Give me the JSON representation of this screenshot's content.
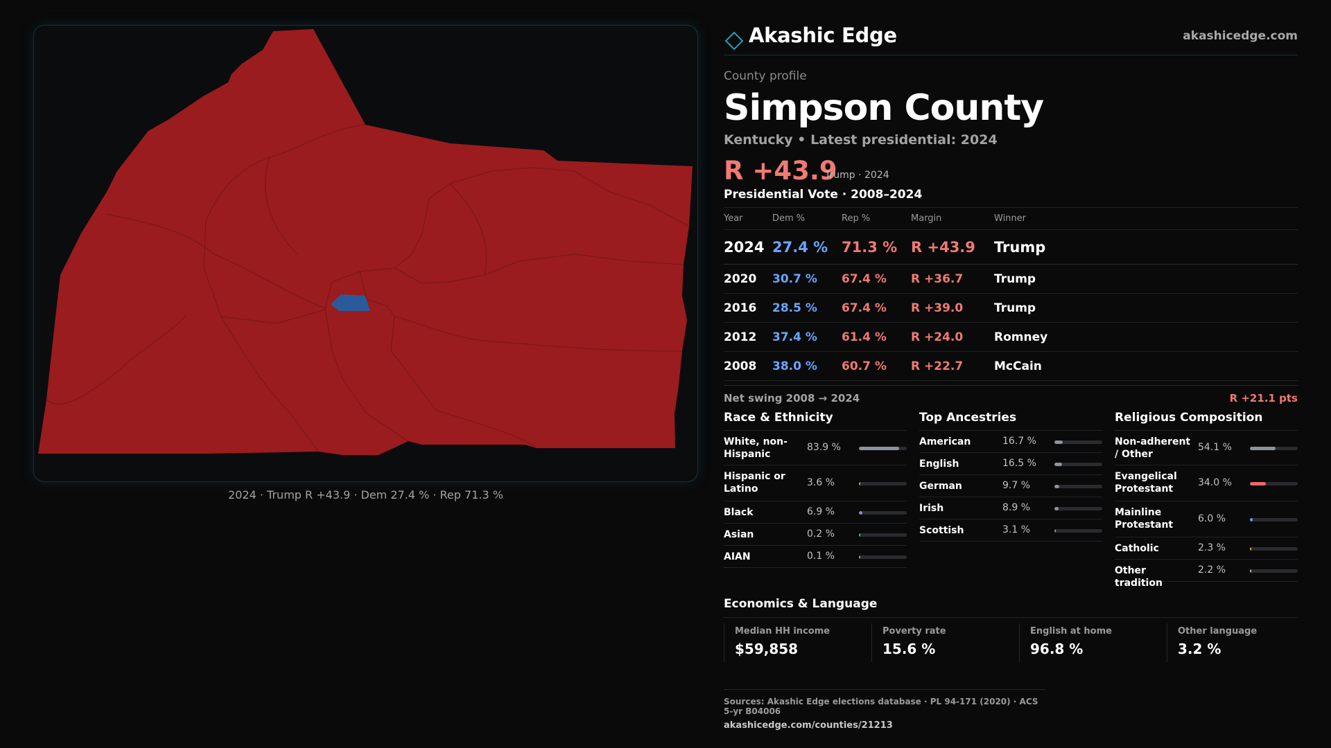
{
  "brand": {
    "name": "Akashic Edge",
    "url": "akashicedge.com"
  },
  "profile": {
    "kicker": "County profile",
    "county": "Simpson County",
    "subtitle": "Kentucky • Latest presidential: 2024",
    "margin": "R +43.9",
    "margin_detail": "Trump · 2024"
  },
  "map": {
    "caption": "2024 · Trump R +43.9 · Dem 27.4 % · Rep 71.3 %",
    "colors": {
      "county_fill": "#9b1c1e",
      "precinct_line": "#7a1416",
      "dem_precinct": "#2b5a9a"
    }
  },
  "presidential": {
    "title": "Presidential Vote · 2008–2024",
    "headers": {
      "year": "Year",
      "dem": "Dem %",
      "rep": "Rep %",
      "margin": "Margin",
      "winner": "Winner"
    },
    "rows": [
      {
        "year": "2024",
        "dem": "27.4 %",
        "rep": "71.3 %",
        "margin": "R +43.9",
        "winner": "Trump"
      },
      {
        "year": "2020",
        "dem": "30.7 %",
        "rep": "67.4 %",
        "margin": "R +36.7",
        "winner": "Trump"
      },
      {
        "year": "2016",
        "dem": "28.5 %",
        "rep": "67.4 %",
        "margin": "R +39.0",
        "winner": "Trump"
      },
      {
        "year": "2012",
        "dem": "37.4 %",
        "rep": "61.4 %",
        "margin": "R +24.0",
        "winner": "Romney"
      },
      {
        "year": "2008",
        "dem": "38.0 %",
        "rep": "60.7 %",
        "margin": "R +22.7",
        "winner": "McCain"
      }
    ],
    "swing_label": "Net swing 2008 → 2024",
    "swing_value": "R +21.1 pts"
  },
  "race": {
    "title": "Race & Ethnicity",
    "items": [
      {
        "label": "White, non-Hispanic",
        "value": "83.9 %",
        "share": 83.9,
        "color": "#8c939c"
      },
      {
        "label": "Hispanic or Latino",
        "value": "3.6 %",
        "share": 3.6,
        "color": "#e0a03a"
      },
      {
        "label": "Black",
        "value": "6.9 %",
        "share": 6.9,
        "color": "#8f86e8"
      },
      {
        "label": "Asian",
        "value": "0.2 %",
        "share": 0.2,
        "color": "#4bb7a4"
      },
      {
        "label": "AIAN",
        "value": "0.1 %",
        "share": 0.1,
        "color": "#c98b54"
      }
    ]
  },
  "ancestry": {
    "title": "Top Ancestries",
    "items": [
      {
        "label": "American",
        "value": "16.7 %",
        "share": 16.7,
        "color": "#8c939c"
      },
      {
        "label": "English",
        "value": "16.5 %",
        "share": 16.5,
        "color": "#8c939c"
      },
      {
        "label": "German",
        "value": "9.7 %",
        "share": 9.7,
        "color": "#8c939c"
      },
      {
        "label": "Irish",
        "value": "8.9 %",
        "share": 8.9,
        "color": "#8c939c"
      },
      {
        "label": "Scottish",
        "value": "3.1 %",
        "share": 3.1,
        "color": "#8c939c"
      }
    ]
  },
  "religion": {
    "title": "Religious Composition",
    "items": [
      {
        "label": "Non-adherent / Other",
        "value": "54.1 %",
        "share": 54.1,
        "color": "#8c939c"
      },
      {
        "label": "Evangelical Protestant",
        "value": "34.0 %",
        "share": 34.0,
        "color": "#e86a6a"
      },
      {
        "label": "Mainline Protestant",
        "value": "6.0 %",
        "share": 6.0,
        "color": "#5b9bf0"
      },
      {
        "label": "Catholic",
        "value": "2.3 %",
        "share": 2.3,
        "color": "#e0a03a"
      },
      {
        "label": "Other tradition",
        "value": "2.2 %",
        "share": 2.2,
        "color": "#b8b8b8"
      }
    ]
  },
  "economics": {
    "title": "Economics & Language",
    "items": [
      {
        "label": "Median HH income",
        "value": "$59,858"
      },
      {
        "label": "Poverty rate",
        "value": "15.6 %"
      },
      {
        "label": "English at home",
        "value": "96.8 %"
      },
      {
        "label": "Other language",
        "value": "3.2 %"
      }
    ]
  },
  "sources": {
    "line": "Sources: Akashic Edge elections database · PL 94-171 (2020) · ACS 5-yr B04006",
    "url": "akashicedge.com/counties/21213"
  }
}
